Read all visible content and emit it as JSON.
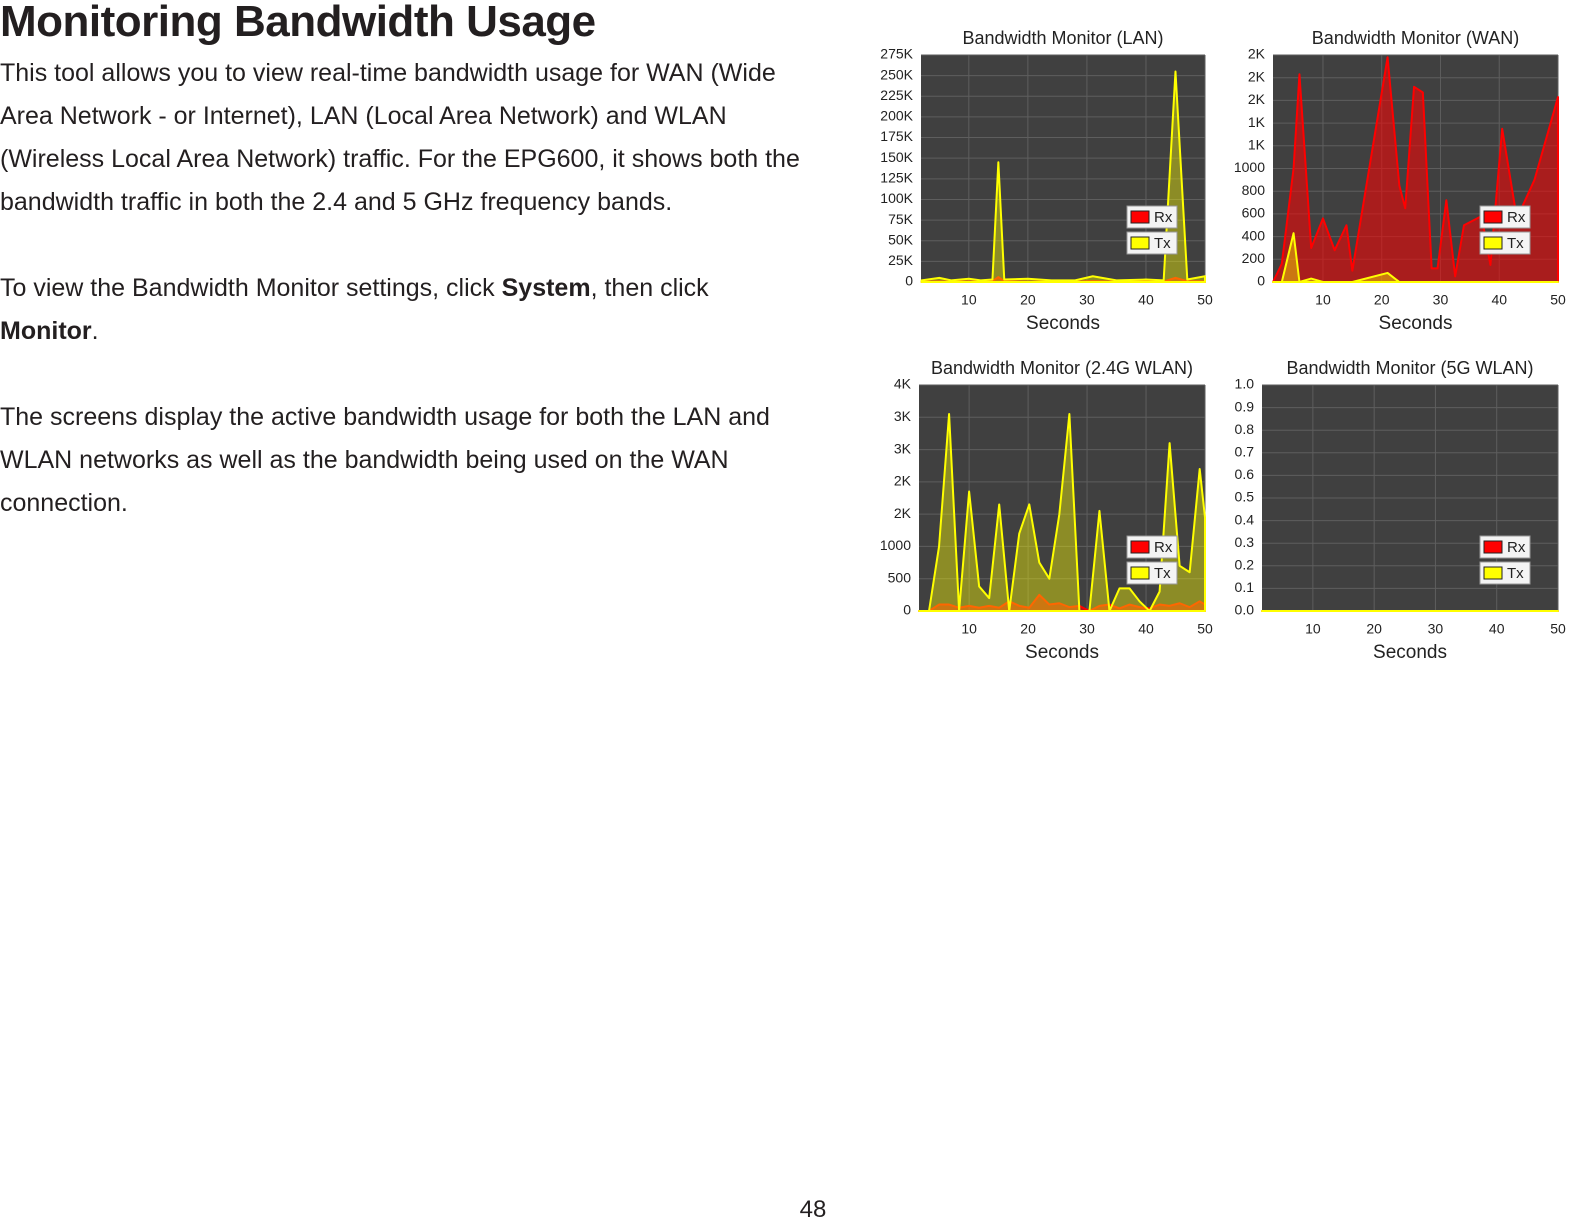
{
  "title": "Monitoring Bandwidth Usage",
  "paragraphs": [
    [
      "This tool allows you to view real-time bandwidth usage for WAN (Wide Area Network - or Internet), LAN (Local Area Network) and WLAN (Wireless Local Area Network) traffic. For the EPG600, it shows both the bandwidth traffic in both the 2.4 and 5 GHz frequency bands."
    ],
    [
      "To view the Bandwidth Monitor settings, click ",
      {
        "text": "System",
        "bold": true
      },
      ", then click ",
      {
        "text": "Monitor",
        "bold": true
      },
      "."
    ],
    [
      "The screens display the active bandwidth usage for both the LAN and WLAN networks as well as the bandwidth being used on the WAN connection."
    ]
  ],
  "page_number": "48",
  "chart_data": [
    {
      "type": "area",
      "title": "Bandwidth Monitor (LAN)",
      "x_label": "Seconds",
      "grid": true,
      "legend": "right",
      "x": [
        2,
        5,
        7,
        10,
        12,
        14,
        15,
        16,
        20,
        24,
        28,
        31,
        35,
        40,
        43,
        45,
        47,
        50
      ],
      "xlim": [
        1.9,
        50
      ],
      "xticks": [
        10,
        20,
        30,
        40,
        50
      ],
      "ylim": [
        0,
        275000
      ],
      "yticks": [
        0,
        {
          "value": 25000,
          "label": "25K"
        },
        {
          "value": 50000,
          "label": "50K"
        },
        {
          "value": 75000,
          "label": "75K"
        },
        {
          "value": 100000,
          "label": "100K"
        },
        {
          "value": 125000,
          "label": "125K"
        },
        {
          "value": 150000,
          "label": "150K"
        },
        {
          "value": 175000,
          "label": "175K"
        },
        {
          "value": 200000,
          "label": "200K"
        },
        {
          "value": 225000,
          "label": "225K"
        },
        {
          "value": 250000,
          "label": "250K"
        },
        {
          "value": 275000,
          "label": "275K"
        }
      ],
      "series": [
        {
          "name": "Rx",
          "color": "#ff0000",
          "values": [
            500,
            800,
            500,
            800,
            500,
            1000,
            6000,
            1000,
            500,
            500,
            500,
            1000,
            500,
            800,
            500,
            5000,
            1000,
            800
          ]
        },
        {
          "name": "Tx",
          "color": "#ffff00",
          "values": [
            2000,
            5000,
            2000,
            4000,
            2000,
            3000,
            145000,
            3000,
            4000,
            2000,
            2000,
            7000,
            2000,
            3000,
            2000,
            255000,
            3000,
            7000
          ]
        }
      ]
    },
    {
      "type": "area",
      "title": "Bandwidth Monitor (WAN)",
      "x_label": "Seconds",
      "grid": true,
      "legend": "right",
      "x": [
        1.5,
        3,
        5,
        6,
        8,
        10,
        12,
        14,
        15,
        21,
        23,
        24,
        25.5,
        27,
        28.5,
        29.5,
        31,
        32.5,
        34,
        37,
        38.5,
        40.5,
        43,
        46,
        50
      ],
      "xlim": [
        1.5,
        50
      ],
      "xticks": [
        10,
        20,
        30,
        40,
        50
      ],
      "ylim": [
        0,
        2000
      ],
      "yticks": [
        0,
        200,
        400,
        600,
        800,
        1000,
        {
          "value": 1200,
          "label": "1K"
        },
        {
          "value": 1400,
          "label": "1K"
        },
        {
          "value": 1600,
          "label": "2K"
        },
        {
          "value": 1800,
          "label": "2K"
        },
        {
          "value": 2000,
          "label": "2K"
        }
      ],
      "series": [
        {
          "name": "Rx",
          "color": "#ff0000",
          "values": [
            0,
            160,
            1000,
            1830,
            300,
            560,
            280,
            500,
            100,
            1980,
            850,
            650,
            1720,
            1670,
            120,
            120,
            720,
            50,
            500,
            580,
            150,
            1350,
            560,
            900,
            1630
          ]
        },
        {
          "name": "Tx",
          "color": "#ffff00",
          "values": [
            0,
            0,
            430,
            0,
            30,
            0,
            0,
            0,
            0,
            80,
            0,
            0,
            0,
            0,
            0,
            0,
            0,
            0,
            0,
            0,
            0,
            0,
            0,
            0,
            0
          ]
        }
      ]
    },
    {
      "type": "area",
      "title": "Bandwidth Monitor (2.4G WLAN)",
      "x_label": "Seconds",
      "grid": true,
      "legend": "right",
      "x": [
        1.5,
        3.2,
        4.9,
        6.6,
        8.3,
        10,
        11.7,
        13.4,
        15.1,
        16.8,
        18.5,
        20.2,
        21.9,
        23.6,
        25.3,
        27,
        28.7,
        30.4,
        32.1,
        33.8,
        35.5,
        37.2,
        38.9,
        40.6,
        42.3,
        44,
        45.7,
        47.4,
        49.1,
        50
      ],
      "xlim": [
        1.5,
        50
      ],
      "xticks": [
        10,
        20,
        30,
        40,
        50
      ],
      "ylim": [
        0,
        3500
      ],
      "yticks": [
        0,
        500,
        1000,
        {
          "value": 1500,
          "label": "2K"
        },
        {
          "value": 2000,
          "label": "2K"
        },
        {
          "value": 2500,
          "label": "3K"
        },
        {
          "value": 3000,
          "label": "3K"
        },
        {
          "value": 3500,
          "label": "4K"
        }
      ],
      "series": [
        {
          "name": "Rx",
          "color": "#ff0000",
          "values": [
            0,
            0,
            100,
            100,
            50,
            80,
            50,
            80,
            50,
            150,
            80,
            50,
            250,
            100,
            120,
            60,
            80,
            0,
            80,
            100,
            40,
            100,
            60,
            40,
            100,
            80,
            120,
            60,
            150,
            100
          ]
        },
        {
          "name": "Tx",
          "color": "#ffff00",
          "values": [
            0,
            0,
            1000,
            3050,
            0,
            1850,
            380,
            200,
            1650,
            0,
            1200,
            1650,
            750,
            500,
            1500,
            3050,
            0,
            0,
            1550,
            0,
            350,
            350,
            150,
            0,
            300,
            2600,
            700,
            600,
            2200,
            1450
          ]
        }
      ]
    },
    {
      "type": "area",
      "title": "Bandwidth Monitor (5G WLAN)",
      "x_label": "Seconds",
      "grid": true,
      "legend": "right",
      "x": [
        1.7,
        50
      ],
      "xlim": [
        1.7,
        50
      ],
      "xticks": [
        10,
        20,
        30,
        40,
        50
      ],
      "ylim": [
        0,
        1
      ],
      "yticks": [
        {
          "value": 0,
          "label": "0.0"
        },
        0.1,
        0.2,
        0.3,
        0.4,
        0.5,
        0.6,
        0.7,
        0.8,
        0.9,
        {
          "value": 1,
          "label": "1.0"
        }
      ],
      "series": [
        {
          "name": "Rx",
          "color": "#ff0000",
          "values": [
            0,
            0
          ]
        },
        {
          "name": "Tx",
          "color": "#ffff00",
          "values": [
            0,
            0
          ]
        }
      ]
    }
  ]
}
